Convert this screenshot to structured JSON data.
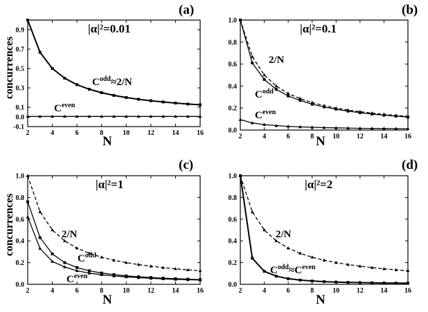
{
  "chart_data": [
    {
      "panel": "(a)",
      "type": "line",
      "title": "|α|²=0.01",
      "xlabel": "N",
      "ylabel": "concurrences",
      "xlim": [
        2,
        16
      ],
      "ylim": [
        -0.1,
        1.0
      ],
      "xticks": [
        2,
        4,
        6,
        8,
        10,
        12,
        14,
        16
      ],
      "yticks": [
        -0.1,
        0.0,
        0.1,
        0.3,
        0.5,
        0.7,
        0.9
      ],
      "x": [
        2,
        3,
        4,
        5,
        6,
        7,
        8,
        9,
        10,
        11,
        12,
        13,
        14,
        15,
        16
      ],
      "series": [
        {
          "name": "C^odd≈2/N",
          "style": "solid",
          "marker": "square",
          "values": [
            1.0,
            0.667,
            0.5,
            0.4,
            0.333,
            0.286,
            0.25,
            0.222,
            0.2,
            0.182,
            0.167,
            0.154,
            0.143,
            0.133,
            0.125
          ]
        },
        {
          "name": "C^even",
          "style": "solid",
          "marker": "triangle",
          "values": [
            0.005,
            0.005,
            0.005,
            0.005,
            0.005,
            0.005,
            0.005,
            0.005,
            0.005,
            0.005,
            0.005,
            0.005,
            0.005,
            0.005,
            0.005
          ]
        }
      ],
      "annotations": [
        {
          "base": "C",
          "sup": "odd",
          "rest": "≈2/N"
        },
        {
          "base": "C",
          "sup": "even",
          "rest": ""
        }
      ]
    },
    {
      "panel": "(b)",
      "type": "line",
      "title": "|α|²=0.1",
      "xlabel": "N",
      "ylabel": "",
      "xlim": [
        2,
        16
      ],
      "ylim": [
        0,
        1.0
      ],
      "xticks": [
        2,
        4,
        6,
        8,
        10,
        12,
        14,
        16
      ],
      "yticks": [
        0.0,
        0.2,
        0.4,
        0.6,
        0.8,
        1.0
      ],
      "x": [
        2,
        3,
        4,
        5,
        6,
        7,
        8,
        9,
        10,
        11,
        12,
        13,
        14,
        15,
        16
      ],
      "series": [
        {
          "name": "2/N",
          "style": "dashed",
          "marker": "triangle",
          "values": [
            1.0,
            0.667,
            0.5,
            0.4,
            0.333,
            0.286,
            0.25,
            0.222,
            0.2,
            0.182,
            0.167,
            0.154,
            0.143,
            0.133,
            0.125
          ]
        },
        {
          "name": "C^odd",
          "style": "solid",
          "marker": "square",
          "values": [
            1.0,
            0.61,
            0.46,
            0.37,
            0.31,
            0.27,
            0.235,
            0.21,
            0.19,
            0.172,
            0.158,
            0.146,
            0.135,
            0.127,
            0.118
          ]
        },
        {
          "name": "C^even",
          "style": "solid",
          "marker": "triangle",
          "values": [
            0.095,
            0.065,
            0.05,
            0.04,
            0.034,
            0.029,
            0.025,
            0.022,
            0.02,
            0.018,
            0.016,
            0.015,
            0.014,
            0.013,
            0.012
          ]
        }
      ],
      "annotations": [
        {
          "base": "2/N",
          "sup": "",
          "rest": ""
        },
        {
          "base": "C",
          "sup": "odd",
          "rest": ""
        },
        {
          "base": "C",
          "sup": "even",
          "rest": ""
        }
      ]
    },
    {
      "panel": "(c)",
      "type": "line",
      "title": "|α|²=1",
      "xlabel": "N",
      "ylabel": "concurrences",
      "xlim": [
        2,
        16
      ],
      "ylim": [
        0,
        1.0
      ],
      "xticks": [
        2,
        4,
        6,
        8,
        10,
        12,
        14,
        16
      ],
      "yticks": [
        0.0,
        0.2,
        0.4,
        0.6,
        0.8,
        1.0
      ],
      "x": [
        2,
        3,
        4,
        5,
        6,
        7,
        8,
        9,
        10,
        11,
        12,
        13,
        14,
        15,
        16
      ],
      "series": [
        {
          "name": "2/N",
          "style": "dashed",
          "marker": "triangle",
          "values": [
            1.0,
            0.667,
            0.5,
            0.4,
            0.333,
            0.286,
            0.25,
            0.222,
            0.2,
            0.182,
            0.167,
            0.154,
            0.143,
            0.133,
            0.125
          ]
        },
        {
          "name": "C^odd",
          "style": "solid",
          "marker": "square",
          "values": [
            0.76,
            0.43,
            0.28,
            0.2,
            0.155,
            0.125,
            0.104,
            0.09,
            0.078,
            0.07,
            0.063,
            0.057,
            0.052,
            0.048,
            0.044
          ]
        },
        {
          "name": "C^even",
          "style": "solid",
          "marker": "triangle",
          "values": [
            0.62,
            0.33,
            0.21,
            0.16,
            0.125,
            0.103,
            0.088,
            0.077,
            0.068,
            0.061,
            0.055,
            0.05,
            0.046,
            0.042,
            0.039
          ]
        }
      ],
      "annotations": [
        {
          "base": "2/N",
          "sup": "",
          "rest": ""
        },
        {
          "base": "C",
          "sup": "odd",
          "rest": ""
        },
        {
          "base": "C",
          "sup": "even",
          "rest": ""
        }
      ]
    },
    {
      "panel": "(d)",
      "type": "line",
      "title": "|α|²=2",
      "xlabel": "N",
      "ylabel": "",
      "xlim": [
        2,
        16
      ],
      "ylim": [
        0,
        1.0
      ],
      "xticks": [
        2,
        4,
        6,
        8,
        10,
        12,
        14,
        16
      ],
      "yticks": [
        0.0,
        0.2,
        0.4,
        0.6,
        0.8,
        1.0
      ],
      "x": [
        2,
        3,
        4,
        5,
        6,
        7,
        8,
        9,
        10,
        11,
        12,
        13,
        14,
        15,
        16
      ],
      "series": [
        {
          "name": "2/N",
          "style": "dashed",
          "marker": "triangle",
          "values": [
            1.0,
            0.667,
            0.5,
            0.4,
            0.333,
            0.286,
            0.25,
            0.222,
            0.2,
            0.182,
            0.167,
            0.154,
            0.143,
            0.133,
            0.125
          ]
        },
        {
          "name": "C^odd≈C^even",
          "style": "solid",
          "marker": "square",
          "values": [
            1.0,
            0.24,
            0.12,
            0.075,
            0.052,
            0.039,
            0.031,
            0.025,
            0.021,
            0.018,
            0.016,
            0.014,
            0.012,
            0.011,
            0.01
          ]
        }
      ],
      "annotations": [
        {
          "base": "2/N",
          "sup": "",
          "rest": ""
        },
        {
          "base": "C",
          "sup": "odd",
          "rest": "≈C",
          "sup2": "even"
        }
      ]
    }
  ]
}
